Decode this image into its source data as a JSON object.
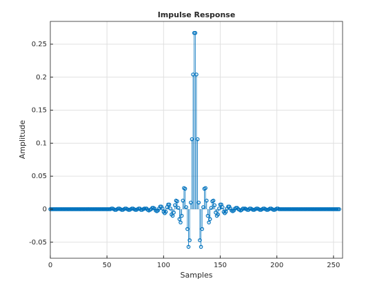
{
  "chart_data": {
    "type": "stem",
    "title": "Impulse Response",
    "xlabel": "Samples",
    "ylabel": "Amplitude",
    "x": [
      0,
      1,
      2,
      3,
      4,
      5,
      6,
      7,
      8,
      9,
      10,
      11,
      12,
      13,
      14,
      15,
      16,
      17,
      18,
      19,
      20,
      21,
      22,
      23,
      24,
      25,
      26,
      27,
      28,
      29,
      30,
      31,
      32,
      33,
      34,
      35,
      36,
      37,
      38,
      39,
      40,
      41,
      42,
      43,
      44,
      45,
      46,
      47,
      48,
      49,
      50,
      51,
      52,
      53,
      54,
      55,
      56,
      57,
      58,
      59,
      60,
      61,
      62,
      63,
      64,
      65,
      66,
      67,
      68,
      69,
      70,
      71,
      72,
      73,
      74,
      75,
      76,
      77,
      78,
      79,
      80,
      81,
      82,
      83,
      84,
      85,
      86,
      87,
      88,
      89,
      90,
      91,
      92,
      93,
      94,
      95,
      96,
      97,
      98,
      99,
      100,
      101,
      102,
      103,
      104,
      105,
      106,
      107,
      108,
      109,
      110,
      111,
      112,
      113,
      114,
      115,
      116,
      117,
      118,
      119,
      120,
      121,
      122,
      123,
      124,
      125,
      126,
      127,
      128,
      129,
      130,
      131,
      132,
      133,
      134,
      135,
      136,
      137,
      138,
      139,
      140,
      141,
      142,
      143,
      144,
      145,
      146,
      147,
      148,
      149,
      150,
      151,
      152,
      153,
      154,
      155,
      156,
      157,
      158,
      159,
      160,
      161,
      162,
      163,
      164,
      165,
      166,
      167,
      168,
      169,
      170,
      171,
      172,
      173,
      174,
      175,
      176,
      177,
      178,
      179,
      180,
      181,
      182,
      183,
      184,
      185,
      186,
      187,
      188,
      189,
      190,
      191,
      192,
      193,
      194,
      195,
      196,
      197,
      198,
      199,
      200,
      201,
      202,
      203,
      204,
      205,
      206,
      207,
      208,
      209,
      210,
      211,
      212,
      213,
      214,
      215,
      216,
      217,
      218,
      219,
      220,
      221,
      222,
      223,
      224,
      225,
      226,
      227,
      228,
      229,
      230,
      231,
      232,
      233,
      234,
      235,
      236,
      237,
      238,
      239,
      240,
      241,
      242,
      243,
      244,
      245,
      246,
      247,
      248,
      249,
      250,
      251,
      252,
      253,
      254,
      255
    ],
    "series": [
      {
        "color": "#0072bd",
        "values": [
          0,
          0,
          0,
          0,
          0,
          0,
          0,
          0,
          0,
          0,
          0,
          0,
          0,
          0,
          0,
          0,
          0,
          0,
          0,
          0,
          0,
          0,
          0,
          0,
          0,
          0,
          0,
          0,
          0,
          0,
          0,
          0,
          0,
          0,
          0,
          0,
          0,
          0,
          0,
          0,
          0,
          0,
          0,
          0,
          0,
          0,
          0,
          0,
          0,
          0,
          0,
          0,
          0,
          0,
          0.001,
          0.001,
          0,
          -0.001,
          -0.001,
          0,
          0.001,
          0.001,
          0,
          -0.001,
          -0.001,
          0,
          0.001,
          0.001,
          0,
          -0.001,
          -0.001,
          0,
          0.001,
          0.001,
          0,
          -0.001,
          -0.001,
          0,
          0.001,
          0.001,
          -0.001,
          -0.001,
          0,
          0.001,
          0.001,
          0.001,
          -0.001,
          -0.002,
          -0.001,
          0,
          0.002,
          0.002,
          0.001,
          -0.002,
          -0.003,
          -0.002,
          0.001,
          0.004,
          0.004,
          0.001,
          -0.004,
          -0.006,
          -0.004,
          0.003,
          0.007,
          0.007,
          0.001,
          -0.008,
          -0.01,
          -0.005,
          0.006,
          0.013,
          0.012,
          0.002,
          -0.015,
          -0.02,
          -0.01,
          0.013,
          0.032,
          0.031,
          0.003,
          -0.03,
          -0.057,
          -0.047,
          0.01,
          0.106,
          0.204,
          0.267,
          0.267,
          0.204,
          0.106,
          0.01,
          -0.047,
          -0.057,
          -0.03,
          0.003,
          0.031,
          0.032,
          0.013,
          -0.01,
          -0.02,
          -0.015,
          0.002,
          0.012,
          0.013,
          0.006,
          -0.005,
          -0.01,
          -0.008,
          0.001,
          0.007,
          0.007,
          0.003,
          -0.004,
          -0.006,
          -0.004,
          0.001,
          0.004,
          0.004,
          0.001,
          -0.002,
          -0.003,
          -0.002,
          0.001,
          0.002,
          0.002,
          0,
          -0.001,
          -0.002,
          -0.001,
          0.001,
          0.001,
          0.001,
          0,
          -0.001,
          -0.001,
          0.001,
          0.001,
          0,
          -0.001,
          -0.001,
          0,
          0.001,
          0.001,
          0,
          -0.001,
          -0.001,
          0,
          0.001,
          0.001,
          0,
          -0.001,
          -0.001,
          0,
          0.001,
          0.001,
          0,
          -0.001,
          -0.001,
          0,
          0.001,
          0.001,
          0,
          0,
          0,
          0,
          0,
          0,
          0,
          0,
          0,
          0,
          0,
          0,
          0,
          0,
          0,
          0,
          0,
          0,
          0,
          0,
          0,
          0,
          0,
          0,
          0,
          0,
          0,
          0,
          0,
          0,
          0,
          0,
          0,
          0,
          0,
          0,
          0,
          0,
          0,
          0,
          0,
          0,
          0,
          0,
          0,
          0,
          0,
          0,
          0,
          0,
          0,
          0,
          0,
          0
        ]
      }
    ],
    "xlim": [
      0,
      258
    ],
    "ylim": [
      -0.0743,
      0.2845
    ],
    "xticks": [
      0,
      50,
      100,
      150,
      200,
      250
    ],
    "yticks": [
      -0.05,
      0,
      0.05,
      0.1,
      0.15,
      0.2,
      0.25
    ],
    "grid": true
  }
}
